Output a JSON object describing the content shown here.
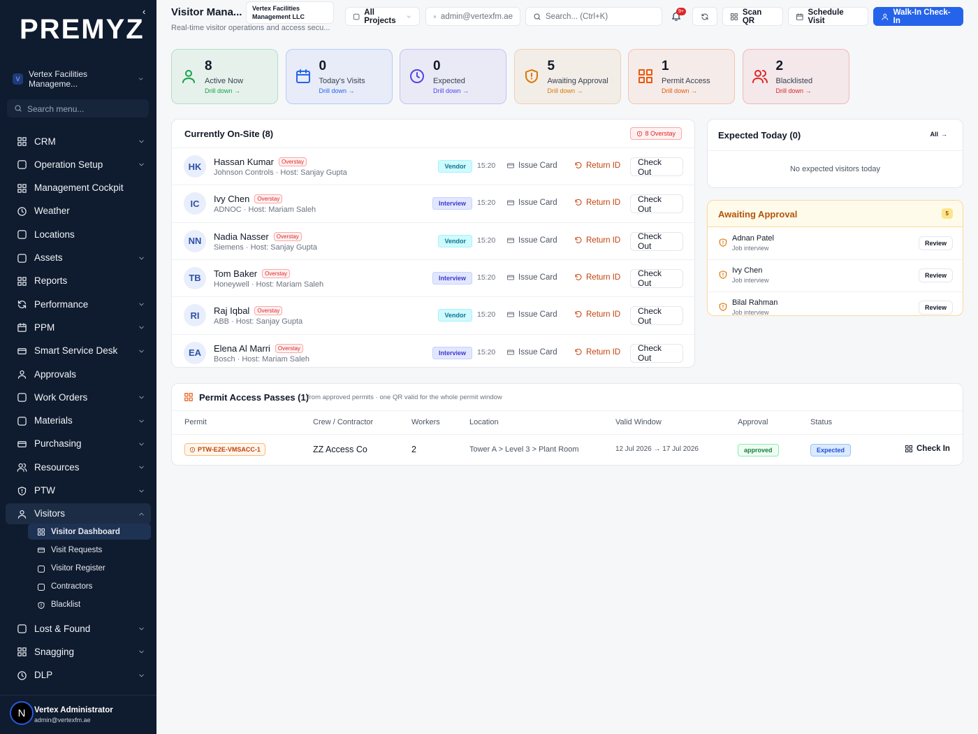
{
  "sidebar": {
    "logo": "PREMYZ",
    "org_initial": "V",
    "org": "Vertex Facilities Manageme...",
    "search": "Search menu...",
    "menu": [
      {
        "label": "CRM",
        "expandable": true
      },
      {
        "label": "Operation Setup",
        "expandable": true
      },
      {
        "label": "Management Cockpit",
        "expandable": false
      },
      {
        "label": "Weather",
        "expandable": false
      },
      {
        "label": "Locations",
        "expandable": false
      },
      {
        "label": "Assets",
        "expandable": true
      },
      {
        "label": "Reports",
        "expandable": false
      },
      {
        "label": "Performance",
        "expandable": true
      },
      {
        "label": "PPM",
        "expandable": true
      },
      {
        "label": "Smart Service Desk",
        "expandable": true
      },
      {
        "label": "Approvals",
        "expandable": false
      },
      {
        "label": "Work Orders",
        "expandable": true
      },
      {
        "label": "Materials",
        "expandable": true
      },
      {
        "label": "Purchasing",
        "expandable": true
      },
      {
        "label": "Resources",
        "expandable": true
      },
      {
        "label": "PTW",
        "expandable": true
      },
      {
        "label": "Visitors",
        "expandable": true,
        "active": true,
        "children": [
          {
            "label": "Visitor Dashboard",
            "active": true
          },
          {
            "label": "Visit Requests",
            "active": false
          },
          {
            "label": "Visitor Register",
            "active": false
          },
          {
            "label": "Contractors",
            "active": false
          },
          {
            "label": "Blacklist",
            "active": false
          }
        ]
      },
      {
        "label": "Lost & Found",
        "expandable": true
      },
      {
        "label": "Snagging",
        "expandable": true
      },
      {
        "label": "DLP",
        "expandable": true
      }
    ],
    "user": {
      "avatar": "N",
      "name": "Vertex Administrator",
      "email": "admin@vertexfm.ae"
    }
  },
  "header": {
    "title": "Visitor Mana...",
    "subtitle": "Real-time visitor operations and access secu...",
    "org": "Vertex Facilities Management LLC",
    "projects": "All Projects",
    "account": "admin@vertexfm.ae",
    "search": "Search... (Ctrl+K)",
    "notifications": "9+",
    "scan": "Scan QR",
    "schedule": "Schedule Visit",
    "walkin": "Walk-In Check-In"
  },
  "stats": [
    {
      "value": 8,
      "label": "Active Now",
      "link": "Drill down →",
      "color": "#16a34a"
    },
    {
      "value": 0,
      "label": "Today's Visits",
      "link": "Drill down →",
      "color": "#2563eb"
    },
    {
      "value": 0,
      "label": "Expected",
      "link": "Drill down →",
      "color": "#4f46e5"
    },
    {
      "value": 5,
      "label": "Awaiting Approval",
      "link": "Drill down →",
      "color": "#d97706"
    },
    {
      "value": 1,
      "label": "Permit Access",
      "link": "Drill down →",
      "color": "#ea580c"
    },
    {
      "value": 2,
      "label": "Blacklisted",
      "link": "Drill down →",
      "color": "#dc2626"
    }
  ],
  "onsite": {
    "title": "Currently On-Site (8)",
    "overstay_count": "8 Overstay",
    "overstay_tag": "Overstay",
    "actions": {
      "issue": "Issue Card",
      "return": "Return ID",
      "checkout": "Check Out"
    },
    "rows": [
      {
        "initials": "HK",
        "name": "Hassan Kumar",
        "detail": "Johnson Controls · Host: Sanjay Gupta",
        "type": "Vendor",
        "tone": "teal",
        "time": "15:20"
      },
      {
        "initials": "IC",
        "name": "Ivy Chen",
        "detail": "ADNOC · Host: Mariam Saleh",
        "type": "Interview",
        "tone": "indigo",
        "time": "15:20"
      },
      {
        "initials": "NN",
        "name": "Nadia Nasser",
        "detail": "Siemens · Host: Sanjay Gupta",
        "type": "Vendor",
        "tone": "teal",
        "time": "15:20"
      },
      {
        "initials": "TB",
        "name": "Tom Baker",
        "detail": "Honeywell · Host: Mariam Saleh",
        "type": "Interview",
        "tone": "indigo",
        "time": "15:20"
      },
      {
        "initials": "RI",
        "name": "Raj Iqbal",
        "detail": "ABB · Host: Sanjay Gupta",
        "type": "Vendor",
        "tone": "teal",
        "time": "15:20"
      },
      {
        "initials": "EA",
        "name": "Elena Al Marri",
        "detail": "Bosch · Host: Mariam Saleh",
        "type": "Interview",
        "tone": "indigo",
        "time": "15:20"
      }
    ]
  },
  "expected": {
    "title": "Expected Today (0)",
    "link": "All",
    "empty": "No expected visitors today"
  },
  "approval": {
    "title": "Awaiting Approval",
    "count": "5",
    "button": "Review",
    "items": [
      {
        "name": "Adnan Patel",
        "detail": "Job interview"
      },
      {
        "name": "Ivy Chen",
        "detail": "Job interview"
      },
      {
        "name": "Bilal Rahman",
        "detail": "Job interview"
      }
    ]
  },
  "permits": {
    "title": "Permit Access Passes (1)",
    "note": "from approved permits · one QR valid for the whole permit window",
    "columns": [
      "Permit",
      "Crew / Contractor",
      "Workers",
      "Location",
      "Valid Window",
      "Approval",
      "Status"
    ],
    "action": "Check In",
    "rows": [
      {
        "permit": "PTW-E2E-VMSACC-1",
        "crew": "ZZ Access Co",
        "workers": 2,
        "location": "Tower A > Level 3 > Plant Room",
        "window": "12 Jul 2026 → 17 Jul 2026",
        "approval": "approved",
        "status": "Expected"
      }
    ]
  }
}
